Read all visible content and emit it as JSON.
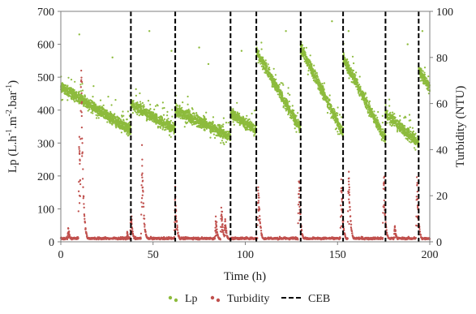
{
  "chart_data": {
    "type": "scatter",
    "xlabel": "Time (h)",
    "ylabel_left_text": "Lp (L.h",
    "ylabel_left_sup1": "-1",
    "ylabel_left_mid": ".m",
    "ylabel_left_sup2": "-2",
    "ylabel_left_mid2": ".bar",
    "ylabel_left_sup3": "-1",
    "ylabel_left_end": ")",
    "ylabel_right": "Turbidity (NTU)",
    "xlim": [
      0,
      200
    ],
    "ylim_left": [
      0,
      700
    ],
    "ylim_right": [
      0,
      100
    ],
    "x_ticks": [
      "0",
      "50",
      "100",
      "150",
      "200"
    ],
    "y_left_ticks": [
      "0",
      "100",
      "200",
      "300",
      "400",
      "500",
      "600",
      "700"
    ],
    "y_right_ticks": [
      "0",
      "20",
      "40",
      "60",
      "80",
      "100"
    ],
    "grid": false,
    "legend_placement": "bottom-center",
    "colors": {
      "lp": "#8dbb3d",
      "turbidity": "#c0504d",
      "ceb": "#000000"
    },
    "legend": [
      {
        "label": "Lp",
        "style": "dot",
        "color": "#8dbb3d"
      },
      {
        "label": "Turbidity",
        "style": "dot",
        "color": "#c0504d"
      },
      {
        "label": "CEB",
        "style": "dashed",
        "color": "#000000"
      }
    ],
    "ceb_times": [
      38,
      62,
      92,
      106,
      130,
      153,
      176,
      194
    ],
    "series": [
      {
        "name": "Lp",
        "axis": "left",
        "color": "#8dbb3d",
        "segments": [
          {
            "start": 0,
            "end": 38,
            "y_start": 470,
            "y_end": 340
          },
          {
            "start": 38,
            "end": 62,
            "y_start": 420,
            "y_end": 340
          },
          {
            "start": 62,
            "end": 92,
            "y_start": 400,
            "y_end": 320
          },
          {
            "start": 92,
            "end": 106,
            "y_start": 390,
            "y_end": 340
          },
          {
            "start": 106,
            "end": 130,
            "y_start": 580,
            "y_end": 340
          },
          {
            "start": 130,
            "end": 153,
            "y_start": 590,
            "y_end": 330
          },
          {
            "start": 153,
            "end": 176,
            "y_start": 560,
            "y_end": 310
          },
          {
            "start": 176,
            "end": 194,
            "y_start": 390,
            "y_end": 300
          },
          {
            "start": 194,
            "end": 200,
            "y_start": 520,
            "y_end": 470
          }
        ],
        "outliers": [
          [
            10,
            630
          ],
          [
            28,
            560
          ],
          [
            48,
            640
          ],
          [
            75,
            590
          ],
          [
            80,
            540
          ],
          [
            60,
            580
          ],
          [
            98,
            580
          ],
          [
            122,
            640
          ],
          [
            147,
            670
          ],
          [
            156,
            640
          ],
          [
            188,
            600
          ],
          [
            196,
            640
          ]
        ]
      },
      {
        "name": "Turbidity",
        "axis": "right",
        "color": "#c0504d",
        "baseline": 1.5,
        "peaks": [
          {
            "t": 4,
            "value": 6
          },
          {
            "t": 10,
            "value": 47
          },
          {
            "t": 11,
            "value": 85
          },
          {
            "t": 36,
            "value": 4
          },
          {
            "t": 38,
            "value": 12
          },
          {
            "t": 44,
            "value": 37
          },
          {
            "t": 62,
            "value": 21
          },
          {
            "t": 84,
            "value": 10
          },
          {
            "t": 87,
            "value": 15
          },
          {
            "t": 89,
            "value": 10
          },
          {
            "t": 107,
            "value": 28
          },
          {
            "t": 129,
            "value": 29
          },
          {
            "t": 152,
            "value": 27
          },
          {
            "t": 156,
            "value": 31
          },
          {
            "t": 175,
            "value": 29
          },
          {
            "t": 181,
            "value": 7
          },
          {
            "t": 193,
            "value": 27
          }
        ]
      }
    ]
  }
}
